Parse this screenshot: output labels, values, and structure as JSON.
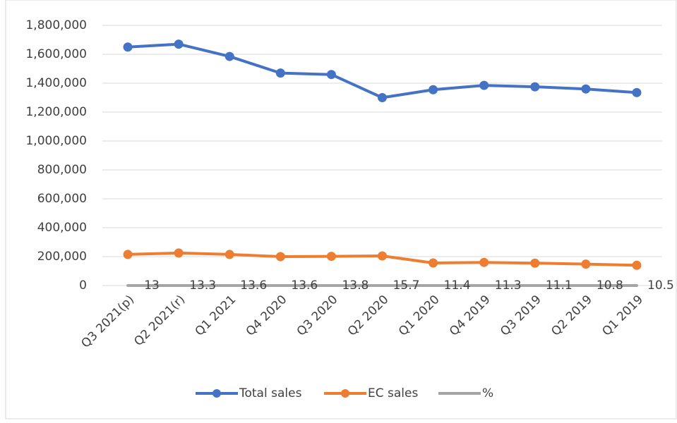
{
  "chart_data": {
    "type": "line",
    "categories": [
      "Q3 2021(p)",
      "Q2 2021(r)",
      "Q1 2021",
      "Q4 2020",
      "Q3 2020",
      "Q2 2020",
      "Q1 2020",
      "Q4 2019",
      "Q3 2019",
      "Q2 2019",
      "Q1 2019"
    ],
    "series": [
      {
        "name": "Total sales",
        "color": "#4472c4",
        "markers": true,
        "values": [
          1650000,
          1670000,
          1585000,
          1470000,
          1460000,
          1300000,
          1355000,
          1385000,
          1375000,
          1360000,
          1335000
        ]
      },
      {
        "name": "EC sales",
        "color": "#ed7d31",
        "markers": true,
        "values": [
          215000,
          225000,
          215000,
          200000,
          202000,
          205000,
          156000,
          160000,
          155000,
          148000,
          140000
        ]
      },
      {
        "name": "%",
        "color": "#a5a5a5",
        "markers": false,
        "data_labels": true,
        "values": [
          13,
          13.3,
          13.6,
          13.6,
          13.8,
          15.7,
          11.4,
          11.3,
          11.1,
          10.8,
          10.5
        ]
      }
    ],
    "ylim": [
      0,
      1800000
    ],
    "yticks": [
      0,
      {
        "value": 200000,
        "label": "200,000"
      },
      {
        "value": 400000,
        "label": "400,000"
      },
      {
        "value": 600000,
        "label": "600,000"
      },
      {
        "value": 800000,
        "label": "800,000"
      },
      {
        "value": 1000000,
        "label": "1,000,000"
      },
      {
        "value": 1200000,
        "label": "1,200,000"
      },
      {
        "value": 1400000,
        "label": "1,400,000"
      },
      {
        "value": 1600000,
        "label": "1,600,000"
      },
      {
        "value": 1800000,
        "label": "1,800,000"
      }
    ],
    "grid": true,
    "legend": "bottom"
  }
}
